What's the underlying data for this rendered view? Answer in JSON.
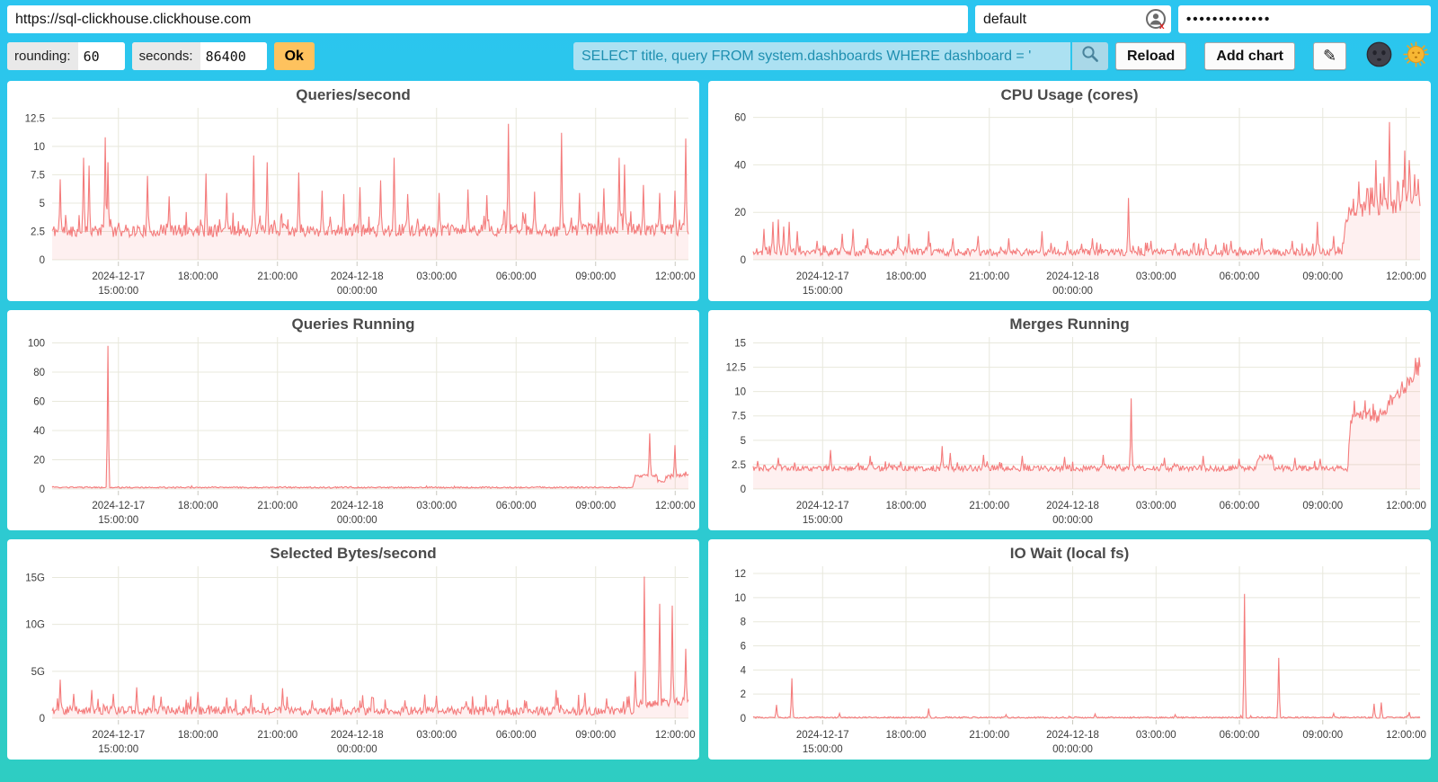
{
  "topbar": {
    "url_value": "https://sql-clickhouse.clickhouse.com",
    "user_value": "default",
    "password_masked": "•••••••••••••"
  },
  "controls": {
    "rounding_label": "rounding:",
    "rounding_value": "60",
    "seconds_label": "seconds:",
    "seconds_value": "86400",
    "ok_label": "Ok",
    "query_value": "SELECT title, query FROM system.dashboards WHERE dashboard = '",
    "search_icon": "magnifier",
    "reload_label": "Reload",
    "add_chart_label": "Add chart",
    "edit_icon": "✎",
    "dark_theme_icon": "new-moon-face",
    "light_theme_icon": "sun-with-face"
  },
  "colors": {
    "page_top": "#2bc5f0",
    "page_bottom": "#2ecdc2",
    "line": "#f47c7c",
    "fill": "rgba(246,128,128,0.12)",
    "grid": "#e8e8dc",
    "axis_text": "#3c3c3c",
    "title_text": "#4a4a4a",
    "ok_button": "#fec25e",
    "query_bg": "#ace1f2",
    "query_text": "#1e8fb0"
  },
  "chart_data": {
    "type": "line",
    "x_axis": {
      "start": "2024-12-17 12:30:00",
      "domain_hours": 24,
      "ticks": [
        {
          "t": 2.5,
          "lines": [
            "2024-12-17",
            "15:00:00"
          ]
        },
        {
          "t": 5.5,
          "lines": [
            "18:00:00"
          ]
        },
        {
          "t": 8.5,
          "lines": [
            "21:00:00"
          ]
        },
        {
          "t": 11.5,
          "lines": [
            "2024-12-18",
            "00:00:00"
          ]
        },
        {
          "t": 14.5,
          "lines": [
            "03:00:00"
          ]
        },
        {
          "t": 17.5,
          "lines": [
            "06:00:00"
          ]
        },
        {
          "t": 20.5,
          "lines": [
            "09:00:00"
          ]
        },
        {
          "t": 23.5,
          "lines": [
            "12:00:00"
          ]
        }
      ]
    },
    "charts": [
      {
        "title": "Queries/second",
        "seed": 11,
        "ymax": 13.4,
        "yticks": [
          [
            0,
            "0"
          ],
          [
            2.5,
            "2.5"
          ],
          [
            5,
            "5"
          ],
          [
            7.5,
            "7.5"
          ],
          [
            10,
            "10"
          ],
          [
            12.5,
            "12.5"
          ]
        ],
        "levels": [
          [
            0,
            2.5
          ],
          [
            24,
            2.6
          ]
        ],
        "noise": [
          [
            0,
            0.55
          ]
        ],
        "burst": {
          "p": 0.06,
          "m": 2.2
        },
        "spikes": [
          [
            0.3,
            7.1
          ],
          [
            1.2,
            9.0
          ],
          [
            1.4,
            8.3
          ],
          [
            2.0,
            10.8
          ],
          [
            2.1,
            8.6
          ],
          [
            3.6,
            7.4
          ],
          [
            4.4,
            5.6
          ],
          [
            5.8,
            7.6
          ],
          [
            6.6,
            5.9
          ],
          [
            7.6,
            9.2
          ],
          [
            8.1,
            8.6
          ],
          [
            9.3,
            7.7
          ],
          [
            10.2,
            6.1
          ],
          [
            11.0,
            5.8
          ],
          [
            11.6,
            6.4
          ],
          [
            12.4,
            7.0
          ],
          [
            12.9,
            9.0
          ],
          [
            13.4,
            5.8
          ],
          [
            14.6,
            5.9
          ],
          [
            15.7,
            6.2
          ],
          [
            16.4,
            5.7
          ],
          [
            17.2,
            12.0
          ],
          [
            18.2,
            6.0
          ],
          [
            19.2,
            11.2
          ],
          [
            19.9,
            5.9
          ],
          [
            20.8,
            6.3
          ],
          [
            21.4,
            9.0
          ],
          [
            21.6,
            8.4
          ],
          [
            22.3,
            6.6
          ],
          [
            22.9,
            5.9
          ],
          [
            23.5,
            6.1
          ],
          [
            23.9,
            10.7
          ]
        ]
      },
      {
        "title": "CPU Usage (cores)",
        "seed": 22,
        "ymax": 64,
        "yticks": [
          [
            0,
            "0"
          ],
          [
            20,
            "20"
          ],
          [
            40,
            "40"
          ],
          [
            60,
            "60"
          ]
        ],
        "levels": [
          [
            0,
            3
          ],
          [
            21.2,
            3
          ],
          [
            21.45,
            20
          ],
          [
            24,
            24
          ]
        ],
        "noise": [
          [
            0,
            1.5
          ],
          [
            21.3,
            1.5
          ],
          [
            21.5,
            3.2
          ],
          [
            24,
            4.0
          ]
        ],
        "burst": {
          "p": 0.05,
          "m": 2.0
        },
        "spikes": [
          [
            0.4,
            13
          ],
          [
            0.7,
            16
          ],
          [
            0.9,
            17
          ],
          [
            1.1,
            14
          ],
          [
            1.3,
            16
          ],
          [
            1.6,
            12
          ],
          [
            2.3,
            8
          ],
          [
            3.2,
            11
          ],
          [
            3.6,
            13
          ],
          [
            4.1,
            9
          ],
          [
            5.2,
            10
          ],
          [
            5.6,
            11
          ],
          [
            6.3,
            12
          ],
          [
            7.2,
            9
          ],
          [
            8.1,
            10
          ],
          [
            9.2,
            9
          ],
          [
            10.4,
            12
          ],
          [
            11.3,
            8
          ],
          [
            12.2,
            9
          ],
          [
            13.5,
            26
          ],
          [
            14.3,
            8
          ],
          [
            15.2,
            7
          ],
          [
            16.3,
            9
          ],
          [
            17.2,
            8
          ],
          [
            18.3,
            9
          ],
          [
            19.4,
            8
          ],
          [
            20.3,
            16
          ],
          [
            20.9,
            10
          ],
          [
            21.8,
            33
          ],
          [
            22.1,
            30
          ],
          [
            22.4,
            42
          ],
          [
            22.7,
            35
          ],
          [
            22.9,
            58
          ],
          [
            23.2,
            33
          ],
          [
            23.45,
            46
          ],
          [
            23.6,
            42
          ],
          [
            23.8,
            36
          ],
          [
            23.95,
            34
          ]
        ]
      },
      {
        "title": "Queries Running",
        "seed": 33,
        "ymax": 104,
        "yticks": [
          [
            0,
            "0"
          ],
          [
            20,
            "20"
          ],
          [
            40,
            "40"
          ],
          [
            60,
            "60"
          ],
          [
            80,
            "80"
          ],
          [
            100,
            "100"
          ]
        ],
        "levels": [
          [
            0,
            1
          ],
          [
            21.9,
            1
          ],
          [
            22.0,
            9
          ],
          [
            22.8,
            9
          ],
          [
            22.85,
            5.5
          ],
          [
            23.1,
            5.5
          ],
          [
            23.15,
            8
          ],
          [
            24,
            10
          ]
        ],
        "noise": [
          [
            0,
            0.45
          ],
          [
            21.9,
            0.45
          ],
          [
            22.0,
            1.0
          ],
          [
            24,
            1.2
          ]
        ],
        "burst": {
          "p": 0.02,
          "m": 1.5
        },
        "spikes": [
          [
            2.1,
            98
          ],
          [
            22.55,
            38
          ],
          [
            23.5,
            30
          ]
        ]
      },
      {
        "title": "Merges Running",
        "seed": 44,
        "ymax": 15.6,
        "yticks": [
          [
            0,
            "0"
          ],
          [
            2.5,
            "2.5"
          ],
          [
            5,
            "5"
          ],
          [
            7.5,
            "7.5"
          ],
          [
            10,
            "10"
          ],
          [
            12.5,
            "12.5"
          ],
          [
            15,
            "15"
          ]
        ],
        "levels": [
          [
            0,
            2.1
          ],
          [
            18.1,
            2.1
          ],
          [
            18.15,
            3.2
          ],
          [
            18.7,
            3.2
          ],
          [
            18.75,
            2.1
          ],
          [
            21.4,
            2.1
          ],
          [
            21.5,
            7.2
          ],
          [
            22.5,
            7.5
          ],
          [
            23.2,
            9.5
          ],
          [
            24,
            12.7
          ]
        ],
        "noise": [
          [
            0,
            0.3
          ],
          [
            21.4,
            0.3
          ],
          [
            21.5,
            0.7
          ],
          [
            24,
            0.9
          ]
        ],
        "burst": {
          "p": 0.04,
          "m": 1.6
        },
        "spikes": [
          [
            0.9,
            3.2
          ],
          [
            2.8,
            4.0
          ],
          [
            4.2,
            3.4
          ],
          [
            6.8,
            4.4
          ],
          [
            7.1,
            3.7
          ],
          [
            8.3,
            3.5
          ],
          [
            9.7,
            3.4
          ],
          [
            11.2,
            3.3
          ],
          [
            12.6,
            3.5
          ],
          [
            13.6,
            9.3
          ],
          [
            14.8,
            3.2
          ],
          [
            16.2,
            3.4
          ],
          [
            17.5,
            3.1
          ],
          [
            19.5,
            3.2
          ],
          [
            20.4,
            3.1
          ]
        ]
      },
      {
        "title": "Selected Bytes/second",
        "seed": 55,
        "ymax": 16200000000.0,
        "yticks": [
          [
            0,
            "0"
          ],
          [
            5000000000.0,
            "5G"
          ],
          [
            10000000000.0,
            "10G"
          ],
          [
            15000000000.0,
            "15G"
          ]
        ],
        "levels": [
          [
            0,
            800000000.0
          ],
          [
            21.9,
            700000000.0
          ],
          [
            22.1,
            1500000000.0
          ],
          [
            24,
            1800000000.0
          ]
        ],
        "noise": [
          [
            0,
            450000000.0
          ]
        ],
        "burst": {
          "p": 0.05,
          "m": 3.0
        },
        "spikes": [
          [
            0.3,
            4100000000.0
          ],
          [
            0.8,
            2600000000.0
          ],
          [
            1.5,
            3000000000.0
          ],
          [
            2.3,
            2600000000.0
          ],
          [
            3.2,
            3300000000.0
          ],
          [
            4.1,
            2300000000.0
          ],
          [
            5.5,
            2800000000.0
          ],
          [
            6.6,
            2200000000.0
          ],
          [
            7.5,
            2500000000.0
          ],
          [
            8.7,
            3200000000.0
          ],
          [
            9.8,
            1900000000.0
          ],
          [
            10.9,
            2000000000.0
          ],
          [
            12.1,
            2200000000.0
          ],
          [
            13.3,
            1900000000.0
          ],
          [
            14.5,
            2400000000.0
          ],
          [
            15.6,
            1800000000.0
          ],
          [
            16.8,
            2000000000.0
          ],
          [
            17.9,
            1800000000.0
          ],
          [
            19.0,
            3000000000.0
          ],
          [
            20.1,
            2700000000.0
          ],
          [
            20.9,
            2100000000.0
          ],
          [
            21.7,
            2300000000.0
          ],
          [
            22.0,
            5000000000.0
          ],
          [
            22.35,
            15100000000.0
          ],
          [
            22.9,
            12200000000.0
          ],
          [
            23.4,
            12000000000.0
          ],
          [
            23.9,
            7400000000.0
          ]
        ]
      },
      {
        "title": "IO Wait (local fs)",
        "seed": 66,
        "ymax": 12.6,
        "yticks": [
          [
            0,
            "0"
          ],
          [
            2,
            "2"
          ],
          [
            4,
            "4"
          ],
          [
            6,
            "6"
          ],
          [
            8,
            "8"
          ],
          [
            10,
            "10"
          ],
          [
            12,
            "12"
          ]
        ],
        "levels": [
          [
            0,
            0.05
          ],
          [
            24,
            0.05
          ]
        ],
        "noise": [
          [
            0,
            0.06
          ]
        ],
        "burst": {
          "p": 0.01,
          "m": 2.0
        },
        "spikes": [
          [
            0.85,
            1.1
          ],
          [
            1.4,
            3.3
          ],
          [
            3.1,
            0.4
          ],
          [
            6.3,
            0.8
          ],
          [
            9.1,
            0.3
          ],
          [
            12.3,
            0.35
          ],
          [
            15.2,
            0.3
          ],
          [
            17.7,
            10.3
          ],
          [
            18.9,
            5.0
          ],
          [
            20.9,
            0.4
          ],
          [
            22.35,
            1.2
          ],
          [
            22.6,
            1.3
          ],
          [
            23.6,
            0.5
          ]
        ]
      }
    ]
  }
}
